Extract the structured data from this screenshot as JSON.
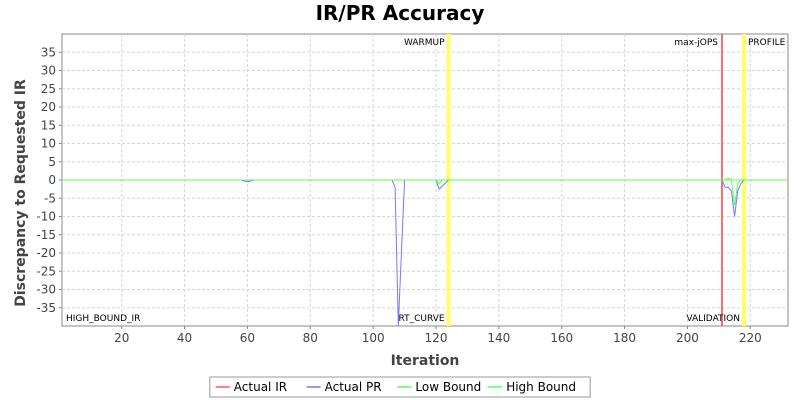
{
  "chart_data": {
    "type": "line",
    "title": "IR/PR Accuracy",
    "xlabel": "Iteration",
    "ylabel": "Discrepancy to Requested IR",
    "xlim": [
      1,
      232
    ],
    "ylim": [
      -40,
      40
    ],
    "xticks": [
      20,
      40,
      60,
      80,
      100,
      120,
      140,
      160,
      180,
      200,
      220
    ],
    "yticks": [
      35,
      30,
      25,
      20,
      15,
      10,
      5,
      0,
      -5,
      -10,
      -15,
      -20,
      -25,
      -30,
      -35
    ],
    "grid": true,
    "legend_position": "bottom",
    "series": [
      {
        "name": "Actual IR",
        "color": "#ff5555",
        "x": [
          1,
          232
        ],
        "y": [
          0,
          0
        ]
      },
      {
        "name": "Actual PR",
        "color": "#7777ff",
        "x": [
          1,
          58,
          60,
          62,
          106,
          107,
          108,
          109,
          110,
          120,
          121,
          124,
          125,
          211,
          212,
          213,
          214,
          215,
          216,
          217,
          218,
          219,
          232
        ],
        "y": [
          0,
          0,
          -0.5,
          0,
          0,
          -2,
          -40,
          -20,
          0,
          0,
          -2.5,
          0,
          0,
          0,
          -2,
          -2,
          -3,
          -10,
          -3,
          -1,
          0,
          0,
          0
        ]
      },
      {
        "name": "Low Bound",
        "color": "#55ff55",
        "x": [
          1,
          120,
          121,
          122,
          211,
          212,
          213,
          214,
          215,
          216,
          217,
          232
        ],
        "y": [
          0,
          0,
          -1,
          0,
          0,
          0,
          0.5,
          0,
          -7,
          -1,
          0,
          0
        ]
      },
      {
        "name": "High Bound",
        "color": "#55ff55",
        "x": [
          1,
          232
        ],
        "y": [
          0,
          0
        ]
      }
    ],
    "markers": [
      {
        "label": "WARMUP",
        "x": 124,
        "color": "#ffff66",
        "label_anchor": "end",
        "label_pos": "top"
      },
      {
        "label": "RT_CURVE",
        "x": 124,
        "color": "#ffff66",
        "label_anchor": "end",
        "label_pos": "bottom"
      },
      {
        "label": "max-jOPS",
        "x": 211,
        "color": "#ff5555",
        "label_anchor": "end",
        "label_pos": "top"
      },
      {
        "label": "VALIDATION",
        "x": 218,
        "color": "#ffff66",
        "label_anchor": "end",
        "label_pos": "bottom"
      },
      {
        "label": "PROFILE",
        "x": 218,
        "color": "#ffff66",
        "label_anchor": "start",
        "label_pos": "top"
      },
      {
        "label": "HIGH_BOUND_IR",
        "x": 1,
        "color": null,
        "label_anchor": "start",
        "label_pos": "bottom"
      }
    ]
  }
}
